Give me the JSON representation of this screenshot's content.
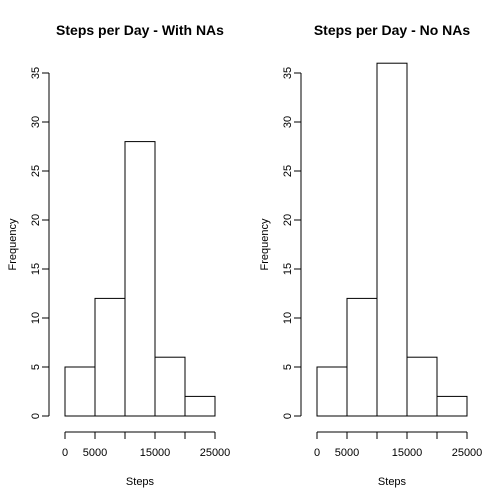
{
  "chart_data": [
    {
      "type": "bar",
      "variant": "histogram",
      "title": "Steps per Day - With NAs",
      "xlabel": "Steps",
      "ylabel": "Frequency",
      "bin_edges": [
        0,
        5000,
        10000,
        15000,
        20000,
        25000
      ],
      "values": [
        5,
        12,
        28,
        6,
        2
      ],
      "xlim": [
        0,
        25000
      ],
      "ylim": [
        0,
        35
      ],
      "x_ticks": [
        0,
        5000,
        10000,
        15000,
        20000,
        25000
      ],
      "x_tick_labels": [
        "0",
        "5000",
        "",
        "15000",
        "",
        "25000"
      ],
      "y_ticks": [
        0,
        5,
        10,
        15,
        20,
        25,
        30,
        35
      ],
      "y_tick_labels": [
        "0",
        "5",
        "10",
        "15",
        "20",
        "25",
        "30",
        "35"
      ],
      "grid": false,
      "legend": "none"
    },
    {
      "type": "bar",
      "variant": "histogram",
      "title": "Steps per Day - No NAs",
      "xlabel": "Steps",
      "ylabel": "Frequency",
      "bin_edges": [
        0,
        5000,
        10000,
        15000,
        20000,
        25000
      ],
      "values": [
        5,
        12,
        36,
        6,
        2
      ],
      "xlim": [
        0,
        25000
      ],
      "ylim": [
        0,
        35
      ],
      "x_ticks": [
        0,
        5000,
        10000,
        15000,
        20000,
        25000
      ],
      "x_tick_labels": [
        "0",
        "5000",
        "",
        "15000",
        "",
        "25000"
      ],
      "y_ticks": [
        0,
        5,
        10,
        15,
        20,
        25,
        30,
        35
      ],
      "y_tick_labels": [
        "0",
        "5",
        "10",
        "15",
        "20",
        "25",
        "30",
        "35"
      ],
      "grid": false,
      "legend": "none"
    }
  ],
  "colors": {
    "bar_fill": "#ffffff",
    "bar_stroke": "#000000",
    "axis": "#000000",
    "background": "#ffffff"
  }
}
